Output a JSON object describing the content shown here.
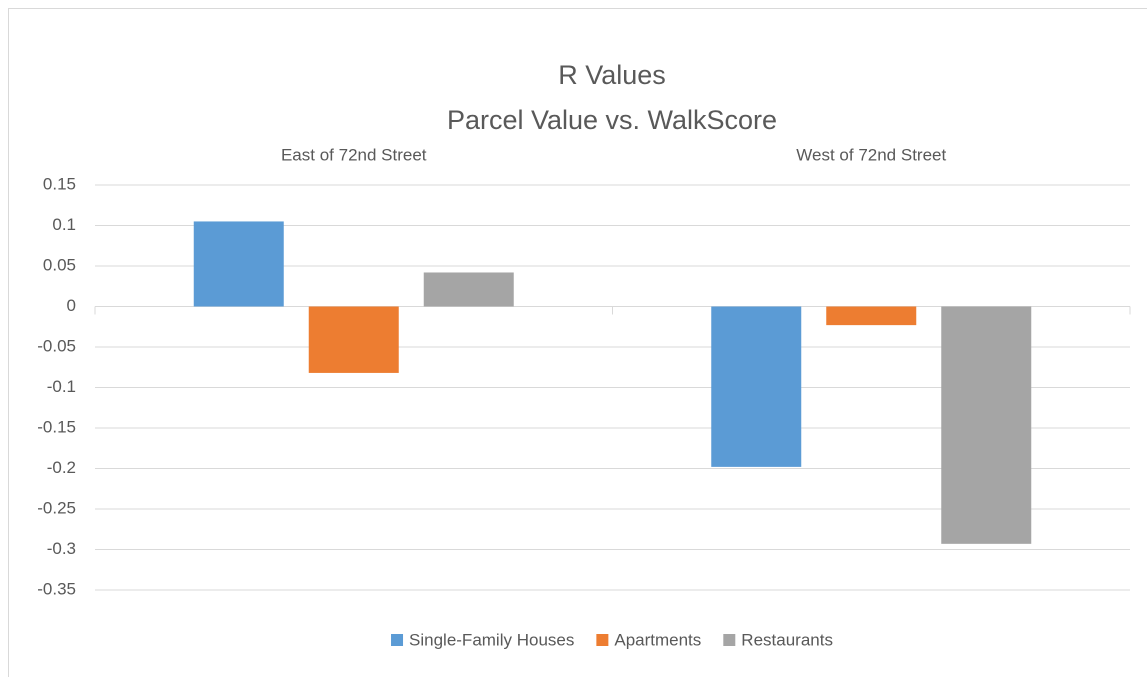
{
  "chart_data": {
    "type": "bar",
    "title": "R Values",
    "subtitle": "Parcel Value vs. WalkScore",
    "categories": [
      "East of 72nd Street",
      "West of 72nd Street"
    ],
    "series": [
      {
        "name": "Single-Family Houses",
        "color": "#5b9bd5",
        "values": [
          0.105,
          -0.198
        ]
      },
      {
        "name": "Apartments",
        "color": "#ed7d31",
        "values": [
          -0.082,
          -0.023
        ]
      },
      {
        "name": "Restaurants",
        "color": "#a5a5a5",
        "values": [
          0.042,
          -0.293
        ]
      }
    ],
    "ylim": [
      -0.35,
      0.15
    ],
    "yticks": [
      0.15,
      0.1,
      0.05,
      0,
      -0.05,
      -0.1,
      -0.15,
      -0.2,
      -0.25,
      -0.3,
      -0.35
    ],
    "grid": true,
    "legend": "bottom"
  }
}
